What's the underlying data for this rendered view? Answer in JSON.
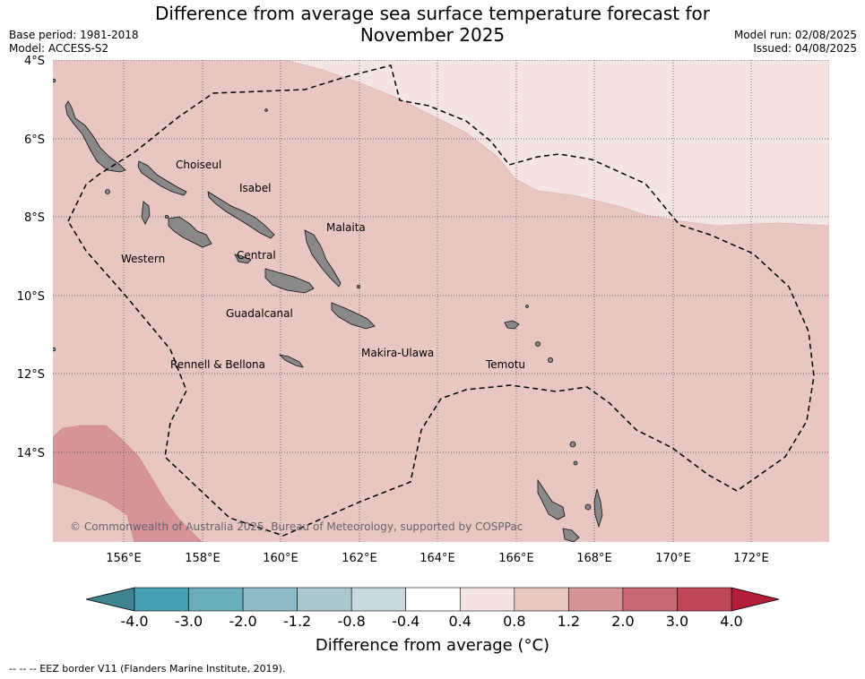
{
  "header": {
    "title_line1": "Difference from average sea surface temperature forecast for",
    "title_line2": "November 2025",
    "base_period": "Base period: 1981-2018",
    "model": "Model: ACCESS-S2",
    "model_run": "Model run: 02/08/2025",
    "issued": "Issued: 04/08/2025"
  },
  "map": {
    "lat_labels": [
      "4°S",
      "6°S",
      "8°S",
      "10°S",
      "12°S",
      "14°S"
    ],
    "lon_labels": [
      "156°E",
      "158°E",
      "160°E",
      "162°E",
      "164°E",
      "166°E",
      "168°E",
      "170°E",
      "172°E"
    ],
    "regions": [
      "Choiseul",
      "Isabel",
      "Malaita",
      "Western",
      "Central",
      "Guadalcanal",
      "Makira-Ulawa",
      "Rennell & Bellona",
      "Temotu"
    ],
    "copyright": "© Commonwealth of Australia 2025, Bureau of Meteorology, supported by COSPPac",
    "land_color": "#8a8888",
    "anomaly_colors": {
      "0.4_to_0.8": "#f4e4e2",
      "0.8_to_1.2": "#e8c6c2",
      "1.2_to_2.0": "#d7939a"
    }
  },
  "colorbar": {
    "ticks": [
      "-4.0",
      "-3.0",
      "-2.0",
      "-1.2",
      "-0.8",
      "-0.4",
      "0.4",
      "0.8",
      "1.2",
      "2.0",
      "3.0",
      "4.0"
    ],
    "colors": [
      "#44a0b2",
      "#6aadbd",
      "#8ebac5",
      "#abc8cd",
      "#c9d9dd",
      "#ffffff",
      "#f4e4e2",
      "#e8c6c2",
      "#d7939a",
      "#c86874",
      "#bf4656"
    ],
    "under_color": "#3e8590",
    "over_color": "#b21e3c",
    "label": "Difference from average (°C)"
  },
  "legend": {
    "eez_note": "--  --  -- EEZ border V11 (Flanders Marine Institute, 2019)."
  }
}
